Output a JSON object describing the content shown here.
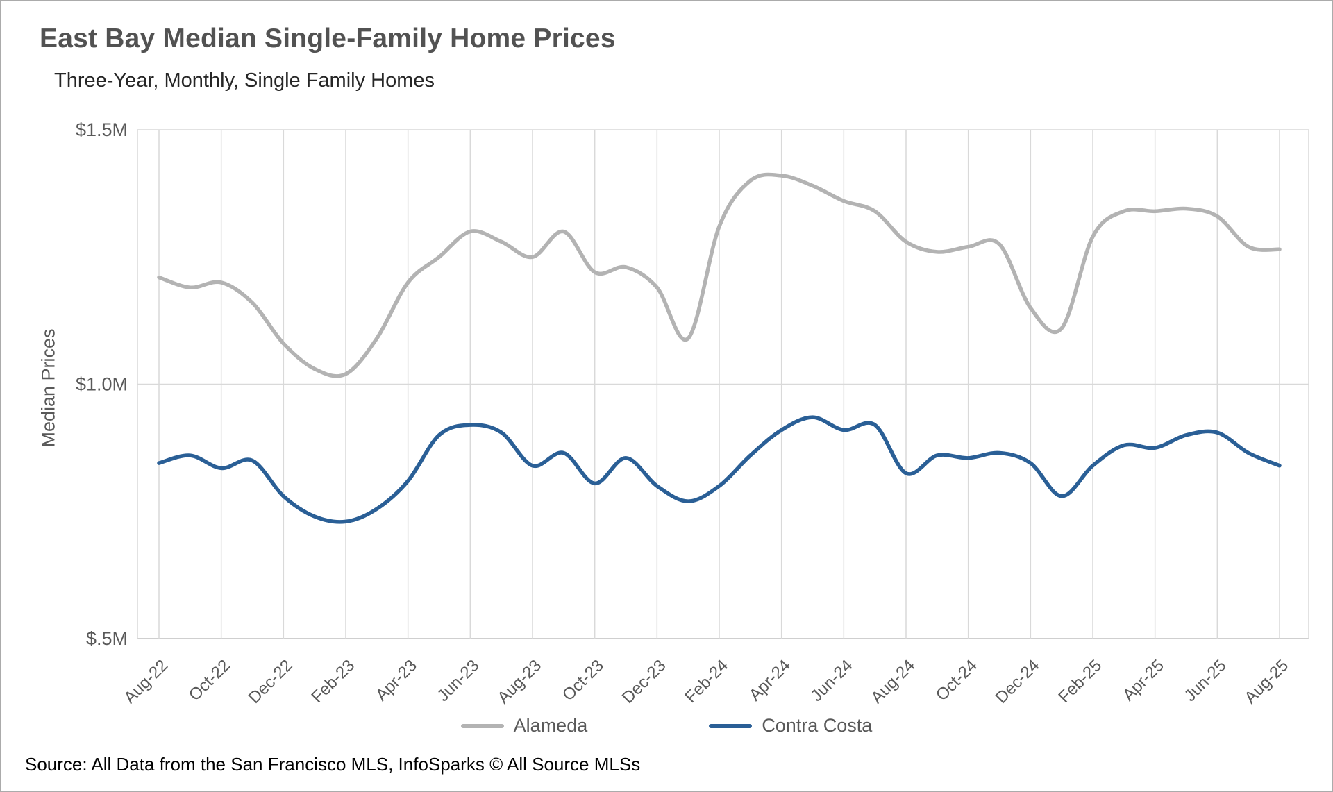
{
  "header": {
    "title": "East Bay Median Single-Family Home Prices",
    "subtitle": "Three-Year, Monthly, Single Family Homes"
  },
  "footer": {
    "source": "Source: All Data from the San Francisco MLS, InfoSparks © All Source MLSs"
  },
  "chart_data": {
    "type": "line",
    "title": "East Bay Median Single-Family Home Prices",
    "subtitle": "Three-Year, Monthly, Single Family Homes",
    "xlabel": "",
    "ylabel": "Median Prices",
    "ylim": [
      0.5,
      1.5
    ],
    "grid": true,
    "legend_position": "bottom",
    "x_tick_every": 2,
    "yticks": [
      {
        "value": 1.5,
        "label": "$1.5M"
      },
      {
        "value": 1.0,
        "label": "$1.0M"
      },
      {
        "value": 0.5,
        "label": "$.5M"
      }
    ],
    "categories": [
      "Aug-22",
      "Sep-22",
      "Oct-22",
      "Nov-22",
      "Dec-22",
      "Jan-23",
      "Feb-23",
      "Mar-23",
      "Apr-23",
      "May-23",
      "Jun-23",
      "Jul-23",
      "Aug-23",
      "Sep-23",
      "Oct-23",
      "Nov-23",
      "Dec-23",
      "Jan-24",
      "Feb-24",
      "Mar-24",
      "Apr-24",
      "May-24",
      "Jun-24",
      "Jul-24",
      "Aug-24",
      "Sep-24",
      "Oct-24",
      "Nov-24",
      "Dec-24",
      "Jan-25",
      "Feb-25",
      "Mar-25",
      "Apr-25",
      "May-25",
      "Jun-25",
      "Jul-25",
      "Aug-25"
    ],
    "series": [
      {
        "name": "Alameda",
        "color": "#b3b3b3",
        "values": [
          1.21,
          1.19,
          1.2,
          1.16,
          1.08,
          1.03,
          1.02,
          1.09,
          1.2,
          1.25,
          1.3,
          1.28,
          1.25,
          1.3,
          1.22,
          1.23,
          1.19,
          1.09,
          1.31,
          1.4,
          1.41,
          1.39,
          1.36,
          1.34,
          1.28,
          1.26,
          1.27,
          1.275,
          1.15,
          1.11,
          1.29,
          1.34,
          1.34,
          1.345,
          1.33,
          1.27,
          1.265
        ]
      },
      {
        "name": "Contra Costa",
        "color": "#2a5f96",
        "values": [
          0.845,
          0.86,
          0.835,
          0.85,
          0.78,
          0.74,
          0.73,
          0.755,
          0.81,
          0.9,
          0.92,
          0.905,
          0.84,
          0.865,
          0.805,
          0.855,
          0.8,
          0.77,
          0.8,
          0.86,
          0.91,
          0.935,
          0.91,
          0.92,
          0.825,
          0.86,
          0.855,
          0.865,
          0.845,
          0.78,
          0.84,
          0.88,
          0.875,
          0.9,
          0.905,
          0.865,
          0.84
        ]
      }
    ],
    "colors": {
      "grid": "#d9d9d9",
      "axis": "#bfbfbf",
      "tick_text": "#595959"
    }
  }
}
